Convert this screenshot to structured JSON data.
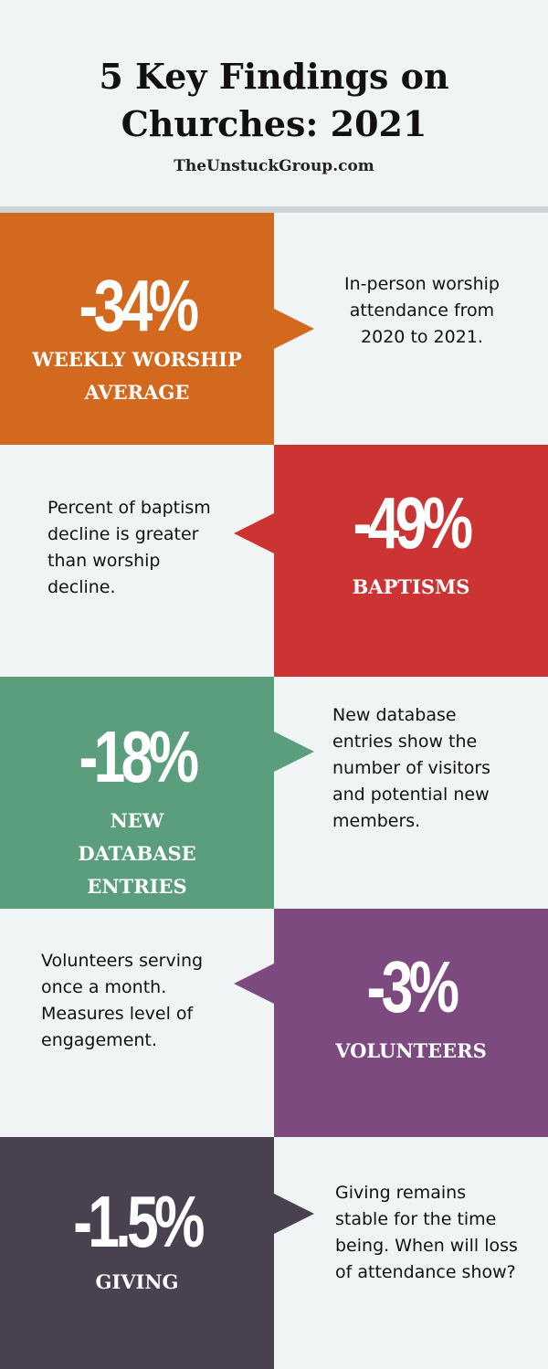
{
  "header": {
    "title_line1": "5 Key Findings on",
    "title_line2": "Churches: 2021",
    "site": "TheUnstuckGroup.com"
  },
  "findings": [
    {
      "value": "-34%",
      "label_line1": "WEEKLY WORSHIP",
      "label_line2": "AVERAGE",
      "label_line3": "",
      "description": "In-person worship attendance from 2020 to 2021.",
      "color": "#d2691e"
    },
    {
      "value": "-49%",
      "label_line1": "BAPTISMS",
      "label_line2": "",
      "label_line3": "",
      "description": "Percent of baptism decline is greater than worship decline.",
      "color": "#cc3333"
    },
    {
      "value": "-18%",
      "label_line1": "NEW",
      "label_line2": "DATABASE",
      "label_line3": "ENTRIES",
      "description": "New database entries show the number of visitors and potential new members.",
      "color": "#5a9e7d"
    },
    {
      "value": "-3%",
      "label_line1": "VOLUNTEERS",
      "label_line2": "",
      "label_line3": "",
      "description": "Volunteers serving once a month. Measures level of engagement.",
      "color": "#7d4a80"
    },
    {
      "value": "-1.5%",
      "label_line1": "GIVING",
      "label_line2": "",
      "label_line3": "",
      "description": "Giving remains stable for the time being. When will loss of attendance show?",
      "color": "#4a4150"
    }
  ]
}
